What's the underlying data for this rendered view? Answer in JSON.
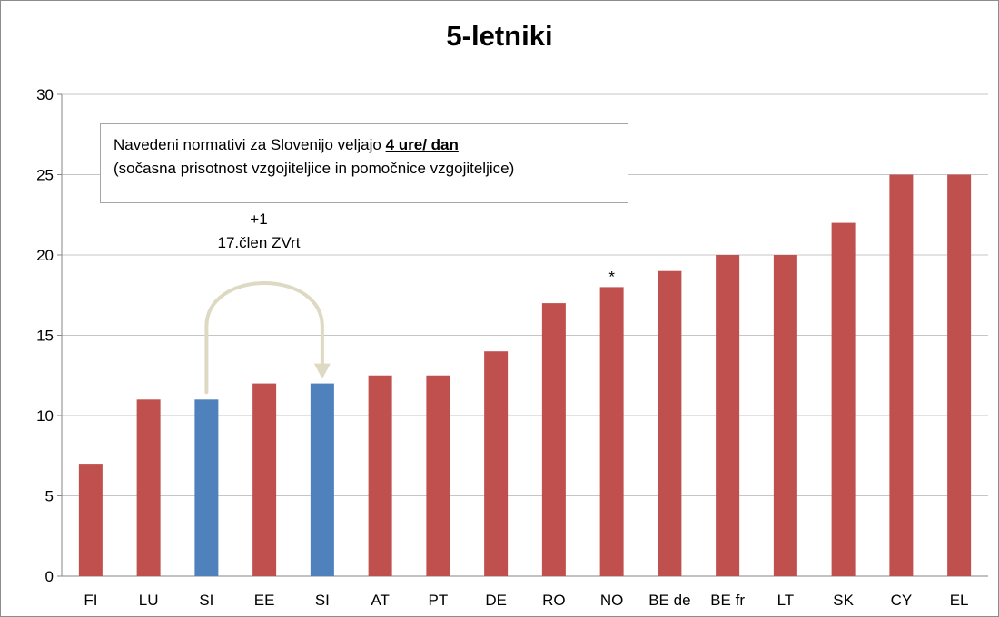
{
  "chart_data": {
    "type": "bar",
    "title": "5-letniki",
    "categories": [
      "FI",
      "LU",
      "SI",
      "EE",
      "SI",
      "AT",
      "PT",
      "DE",
      "RO",
      "NO",
      "BE de",
      "BE fr",
      "LT",
      "SK",
      "CY",
      "EL"
    ],
    "values": [
      7,
      11,
      11,
      12,
      12,
      12.5,
      12.5,
      14,
      17,
      18,
      19,
      20,
      20,
      22,
      25,
      25
    ],
    "ylim": [
      0,
      30
    ],
    "yticks": [
      0,
      5,
      10,
      15,
      20,
      25,
      30
    ],
    "grid": true,
    "xlabel": "",
    "ylabel": "",
    "colors": {
      "default": "#c0504d",
      "highlight": "#4f81bd",
      "arrow": "#ddd9c3"
    },
    "highlight_indices": [
      2,
      4
    ],
    "bar_marks": [
      {
        "index": 9,
        "text": "*"
      }
    ],
    "note": {
      "text": "Navedeni normativi za Slovenijo veljajo",
      "emphasis": "4 ure/ dan",
      "line2": "(sočasna prisotnost vzgojiteljice in pomočnice vzgojiteljice)"
    },
    "arrow_annotation": {
      "line1": "+1",
      "line2": "17.člen ZVrt",
      "from_index": 2,
      "to_index": 4
    }
  }
}
